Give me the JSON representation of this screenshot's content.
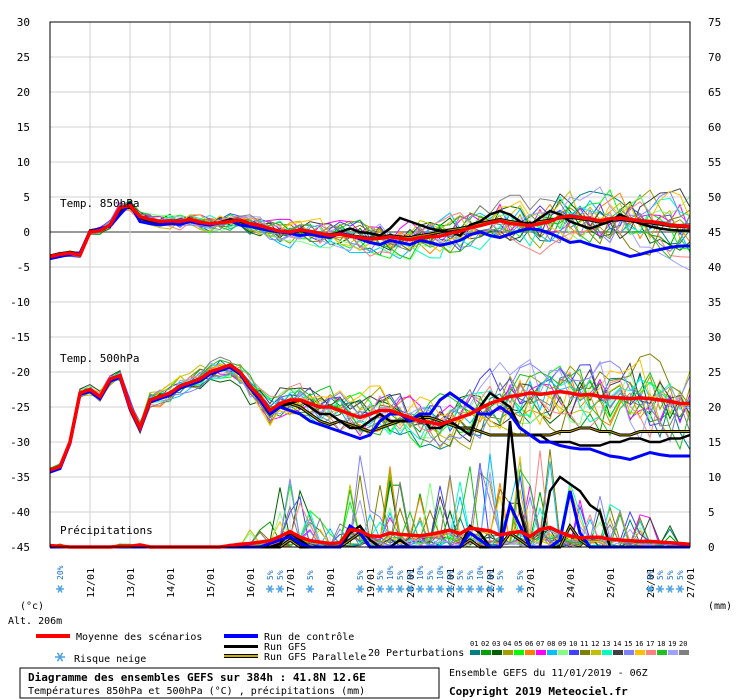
{
  "chart_data": {
    "type": "line",
    "dates": [
      "12/01",
      "13/01",
      "14/01",
      "15/01",
      "16/01",
      "17/01",
      "18/01",
      "19/01",
      "20/01",
      "21/01",
      "22/01",
      "23/01",
      "24/01",
      "25/01",
      "26/01",
      "27/01"
    ],
    "temp_axis": {
      "min": -45,
      "max": 30,
      "ticks": [
        30,
        25,
        20,
        15,
        10,
        5,
        0,
        -5,
        -10,
        -15,
        -20,
        -25,
        -30,
        -35,
        -40,
        -45
      ],
      "unit": "(°c)"
    },
    "precip_axis": {
      "min": 0,
      "max": 75,
      "ticks": [
        75,
        70,
        65,
        60,
        55,
        50,
        45,
        40,
        35,
        30,
        25,
        20,
        15,
        10,
        5,
        0
      ],
      "unit": "(mm)"
    },
    "sections": {
      "t850": "Temp. 850hPa",
      "t500": "Temp. 500hPa",
      "precip": "Précipitations"
    },
    "x_hours": [
      0,
      6,
      12,
      18,
      24,
      30,
      36,
      42,
      48,
      54,
      60,
      66,
      72,
      78,
      84,
      90,
      96,
      102,
      108,
      114,
      120,
      126,
      132,
      138,
      144,
      150,
      156,
      162,
      168,
      174,
      180,
      186,
      192,
      198,
      204,
      210,
      216,
      222,
      228,
      234,
      240,
      246,
      252,
      258,
      264,
      270,
      276,
      282,
      288,
      294,
      300,
      306,
      312,
      318,
      324,
      330,
      336,
      342,
      348,
      354,
      360,
      366,
      372,
      378,
      384
    ],
    "series": [
      {
        "name": "Moyenne des scénarios",
        "color": "#ff0000",
        "role": "mean",
        "t850": [
          -3.5,
          -3.2,
          -3,
          -3.3,
          0,
          0.2,
          1,
          3.5,
          3.8,
          2.2,
          1.8,
          1.5,
          1.6,
          1.5,
          1.8,
          1.4,
          1.2,
          1.3,
          1.5,
          1.7,
          1.2,
          0.9,
          0.5,
          0.1,
          0,
          0.3,
          0.1,
          -0.2,
          -0.5,
          -0.3,
          -0.6,
          -0.8,
          -1,
          -0.9,
          -0.7,
          -0.9,
          -1.1,
          -0.8,
          -0.7,
          -0.6,
          -0.2,
          0.1,
          0.6,
          0.9,
          1.3,
          1.6,
          1.2,
          1.1,
          0.9,
          1.2,
          1.5,
          2.1,
          2.3,
          2.1,
          1.9,
          1.6,
          1.9,
          2,
          1.8,
          1.6,
          1.5,
          1.3,
          1,
          0.9,
          0.8
        ],
        "t500": [
          -34,
          -33.5,
          -30,
          -23,
          -22.5,
          -23.5,
          -21,
          -20.5,
          -25,
          -28,
          -24,
          -23.5,
          -23,
          -22,
          -21.5,
          -21,
          -20,
          -19.5,
          -19,
          -20,
          -22,
          -23.5,
          -25.5,
          -24.5,
          -24,
          -24,
          -24.5,
          -25,
          -25,
          -25.5,
          -26,
          -26.5,
          -26,
          -25.5,
          -25.5,
          -26,
          -26.5,
          -27,
          -27.2,
          -27.5,
          -27,
          -26.5,
          -26,
          -25.2,
          -24.5,
          -24,
          -23.5,
          -23.3,
          -23,
          -23.2,
          -23,
          -22.8,
          -23,
          -23.3,
          -23.2,
          -23.5,
          -23.6,
          -23.7,
          -23.8,
          -23.7,
          -23.8,
          -24,
          -24.2,
          -24.5,
          -24.5
        ],
        "precip": [
          0.2,
          0.1,
          0,
          0,
          0,
          0,
          0,
          0.1,
          0.1,
          0.3,
          0,
          0,
          0,
          0,
          0,
          0,
          0,
          0,
          0.2,
          0.4,
          0.5,
          0.7,
          0.9,
          1.5,
          2.2,
          1.4,
          0.9,
          0.7,
          0.5,
          0.6,
          2.5,
          2.3,
          1.6,
          1.5,
          2,
          1.8,
          1.7,
          1.6,
          1.8,
          2.1,
          2.4,
          1.9,
          2.7,
          2.5,
          2.3,
          1.7,
          2,
          2.2,
          1.5,
          2.5,
          2.8,
          2.1,
          1.6,
          1.3,
          1.4,
          1.4,
          1.1,
          1,
          0.9,
          0.8,
          0.8,
          0.7,
          0.6,
          0.5,
          0.4
        ]
      },
      {
        "name": "Run de contrôle",
        "color": "#0000ff",
        "role": "control",
        "t850": [
          -3.8,
          -3.5,
          -3.2,
          -3,
          0,
          0.5,
          0.8,
          2.5,
          4,
          1.5,
          1.2,
          1,
          1.2,
          1.1,
          1.5,
          1.2,
          1,
          1.3,
          1.6,
          1,
          0.8,
          0.5,
          0.2,
          0,
          -0.2,
          -0.5,
          -0.3,
          -0.6,
          -0.8,
          -0.2,
          -0.5,
          -1,
          -1.5,
          -1.8,
          -1.2,
          -1.5,
          -1.8,
          -1.2,
          -1.5,
          -1.9,
          -1.6,
          -1.2,
          -0.4,
          0,
          -0.5,
          -0.8,
          -0.3,
          0.2,
          0.5,
          0.3,
          -0.2,
          -0.8,
          -1.5,
          -1.3,
          -1.8,
          -2.2,
          -2.5,
          -3,
          -3.5,
          -3.2,
          -2.8,
          -2.5,
          -2.2,
          -2,
          -2
        ],
        "t500": [
          -34.3,
          -33.8,
          -30.2,
          -23.2,
          -22.8,
          -23.8,
          -21.3,
          -20.8,
          -25.3,
          -28.3,
          -24.3,
          -23.8,
          -23.3,
          -22.3,
          -21.8,
          -21.3,
          -20.3,
          -19.8,
          -19.3,
          -20.3,
          -22.3,
          -24,
          -26,
          -25,
          -25.5,
          -26,
          -27,
          -27.5,
          -28,
          -28.5,
          -29,
          -29.5,
          -29,
          -27,
          -26,
          -26,
          -27,
          -26,
          -26,
          -24,
          -23,
          -24,
          -25,
          -26,
          -26,
          -25,
          -26,
          -28,
          -29,
          -30,
          -30,
          -30.5,
          -30.8,
          -31,
          -31,
          -31.5,
          -32,
          -32.2,
          -32.5,
          -32,
          -31.5,
          -31.8,
          -32,
          -32,
          -32
        ],
        "precip": [
          0,
          0,
          0,
          0,
          0,
          0,
          0,
          0,
          0,
          0,
          0,
          0,
          0,
          0,
          0,
          0,
          0,
          0,
          0,
          0,
          0,
          0,
          0.5,
          1,
          1.5,
          0.5,
          0,
          0,
          0,
          0,
          3,
          2,
          0,
          0,
          0,
          0,
          0,
          0,
          0,
          0,
          0,
          0,
          2,
          1,
          0,
          0,
          6,
          3,
          0,
          0,
          0,
          1,
          8,
          2,
          0,
          0,
          0,
          0,
          0,
          0,
          0,
          0,
          0,
          0,
          0
        ]
      },
      {
        "name": "Run GFS",
        "color": "#000000",
        "role": "gfs",
        "t850": [
          -3.6,
          -3.3,
          -3,
          -3,
          0.2,
          0.5,
          0.8,
          3,
          4.2,
          2,
          1.5,
          1.2,
          1.4,
          1.3,
          1.7,
          1.3,
          1.1,
          1.4,
          1.8,
          1.5,
          1,
          0.8,
          0.3,
          0,
          0,
          0.2,
          -0.2,
          -0.2,
          -0.5,
          0,
          0.5,
          0,
          -0.2,
          -0.5,
          0.5,
          2,
          1.5,
          1,
          0.5,
          0.2,
          0,
          -0.5,
          1,
          1.5,
          2.5,
          3,
          2.5,
          1.5,
          1,
          2,
          3,
          2.5,
          1.5,
          1,
          0.5,
          1,
          1.5,
          2.5,
          1.8,
          1.2,
          0.8,
          0.5,
          0.3,
          0.2,
          0.2
        ],
        "t500": [
          -34.2,
          -33.7,
          -30.1,
          -23.1,
          -22.7,
          -23.7,
          -21.2,
          -20.7,
          -25.2,
          -28.2,
          -24.2,
          -23.7,
          -23.2,
          -22.2,
          -21.7,
          -21.2,
          -20.2,
          -19.7,
          -19.2,
          -20.2,
          -22.2,
          -23.8,
          -25.8,
          -25,
          -24.5,
          -24,
          -25,
          -26,
          -26,
          -27,
          -28,
          -28,
          -27,
          -26,
          -27,
          -27,
          -27,
          -26,
          -28,
          -28,
          -27,
          -28,
          -29,
          -25,
          -23,
          -24,
          -25,
          -28,
          -29,
          -29,
          -30,
          -30,
          -30,
          -30.5,
          -30.5,
          -30.5,
          -30,
          -30,
          -29.5,
          -29.5,
          -30,
          -30,
          -29.5,
          -29.5,
          -29
        ],
        "precip": [
          0,
          0,
          0,
          0,
          0,
          0,
          0,
          0,
          0,
          0,
          0,
          0,
          0,
          0,
          0,
          0,
          0,
          0,
          0,
          0,
          0,
          0,
          0,
          0.5,
          2,
          1,
          0,
          0,
          0,
          0,
          2,
          3,
          1,
          0,
          0,
          1,
          0,
          0,
          0,
          0,
          0,
          0,
          3,
          2,
          0,
          0,
          18,
          5,
          0,
          0,
          8,
          10,
          9,
          8,
          6,
          5,
          0,
          0,
          0,
          0,
          0,
          0,
          0,
          0,
          0
        ]
      },
      {
        "name": "Run GFS Parallele",
        "color": "#b8a000",
        "role": "para",
        "outline": "#000000",
        "t850": [
          -3.4,
          -3.1,
          -2.9,
          -3.1,
          0.1,
          0.3,
          0.9,
          3.2,
          3.6,
          2.1,
          1.7,
          1.4,
          1.5,
          1.4,
          1.7,
          1.3,
          1.1,
          1.3,
          1.5,
          1.6,
          1.1,
          0.8,
          0.4,
          0.1,
          -0.1,
          0.2,
          0,
          -0.3,
          -0.4,
          -0.2,
          -0.5,
          -0.7,
          -0.9,
          -0.8,
          -0.5,
          -0.7,
          -0.8,
          -0.5,
          -0.3,
          0,
          0.3,
          0.5,
          0.8,
          1.2,
          1.5,
          1.8,
          1.5,
          1.3,
          1.2,
          1.5,
          1.7,
          2,
          2.1,
          1.9,
          1.7,
          1.4,
          1.6,
          1.8,
          1.6,
          1.4,
          1.3,
          1.1,
          0.9,
          0.8,
          0.7
        ],
        "t500": [
          -34.1,
          -33.6,
          -30,
          -23,
          -22.6,
          -23.6,
          -21.1,
          -20.6,
          -25.1,
          -28.1,
          -24.1,
          -23.6,
          -23.1,
          -22.1,
          -21.6,
          -21.1,
          -20.1,
          -19.6,
          -19.1,
          -20.1,
          -22.1,
          -23.6,
          -25.4,
          -24.8,
          -24.5,
          -25,
          -26,
          -27,
          -27.5,
          -27,
          -27.5,
          -28,
          -28.5,
          -28,
          -27.5,
          -27,
          -27,
          -26.5,
          -26.5,
          -27,
          -27.5,
          -28,
          -28,
          -28.5,
          -29,
          -29,
          -29,
          -29,
          -29,
          -29,
          -29,
          -28.5,
          -28.5,
          -28,
          -28,
          -28.5,
          -28.5,
          -29,
          -29,
          -28.5,
          -28.5,
          -28.5,
          -28.5,
          -28.5,
          -28.5
        ],
        "precip": [
          0,
          0,
          0,
          0,
          0,
          0,
          0,
          0,
          0,
          0,
          0,
          0,
          0,
          0,
          0,
          0,
          0,
          0,
          0,
          0,
          0,
          0,
          0,
          0,
          1,
          0,
          0,
          0,
          0,
          0,
          1,
          2,
          0,
          0,
          0,
          0,
          0,
          0,
          0,
          0,
          0,
          0,
          1,
          0,
          0,
          0,
          2,
          1,
          0,
          0,
          0,
          0,
          3,
          1,
          0,
          0,
          0,
          0,
          0,
          0,
          0,
          0,
          0,
          0,
          0
        ]
      }
    ],
    "perturbation_count": 20,
    "perturbation_colors": [
      "#008080",
      "#00a000",
      "#006000",
      "#a0a000",
      "#00ff00",
      "#ff8000",
      "#ff00ff",
      "#00c0ff",
      "#80ff80",
      "#4040ff",
      "#808000",
      "#c0c000",
      "#00ffc0",
      "#404040",
      "#8080ff",
      "#ffc000",
      "#ff8080",
      "#20c020",
      "#a0a0ff",
      "#808080"
    ],
    "snow_risk": [
      {
        "h": 6,
        "pct": "20%"
      },
      {
        "h": 132,
        "pct": "5%"
      },
      {
        "h": 138,
        "pct": "5%"
      },
      {
        "h": 156,
        "pct": "5%"
      },
      {
        "h": 186,
        "pct": "5%"
      },
      {
        "h": 198,
        "pct": "5%"
      },
      {
        "h": 204,
        "pct": "10%"
      },
      {
        "h": 210,
        "pct": "5%"
      },
      {
        "h": 216,
        "pct": "5%"
      },
      {
        "h": 222,
        "pct": "10%"
      },
      {
        "h": 228,
        "pct": "5%"
      },
      {
        "h": 234,
        "pct": "10%"
      },
      {
        "h": 240,
        "pct": "5%"
      },
      {
        "h": 246,
        "pct": "5%"
      },
      {
        "h": 252,
        "pct": "5%"
      },
      {
        "h": 258,
        "pct": "10%"
      },
      {
        "h": 264,
        "pct": "5%"
      },
      {
        "h": 270,
        "pct": "5%"
      },
      {
        "h": 282,
        "pct": "5%"
      },
      {
        "h": 360,
        "pct": "5%"
      },
      {
        "h": 366,
        "pct": "5%"
      },
      {
        "h": 372,
        "pct": "5%"
      },
      {
        "h": 378,
        "pct": "5%"
      }
    ]
  },
  "labels": {
    "alt": "Alt. 206m",
    "mean": "Moyenne des scénarios",
    "control": "Run de contrôle",
    "gfs": "Run GFS",
    "para": "Run GFS Parallele",
    "snow": "Risque neige",
    "perturbations": "20 Perturbations",
    "pert_numbers": [
      "01",
      "02",
      "03",
      "04",
      "05",
      "06",
      "07",
      "08",
      "09",
      "10",
      "11",
      "12",
      "13",
      "14",
      "15",
      "16",
      "17",
      "18",
      "19",
      "20"
    ],
    "box_title": "Diagramme des ensembles GEFS sur 384h : 41.8N 12.6E",
    "box_sub": "Températures 850hPa et 500hPa (°C) , précipitations (mm)",
    "ensemble": "Ensemble GEFS du 11/01/2019 - 06Z",
    "copyright": "Copyright 2019 Meteociel.fr"
  }
}
